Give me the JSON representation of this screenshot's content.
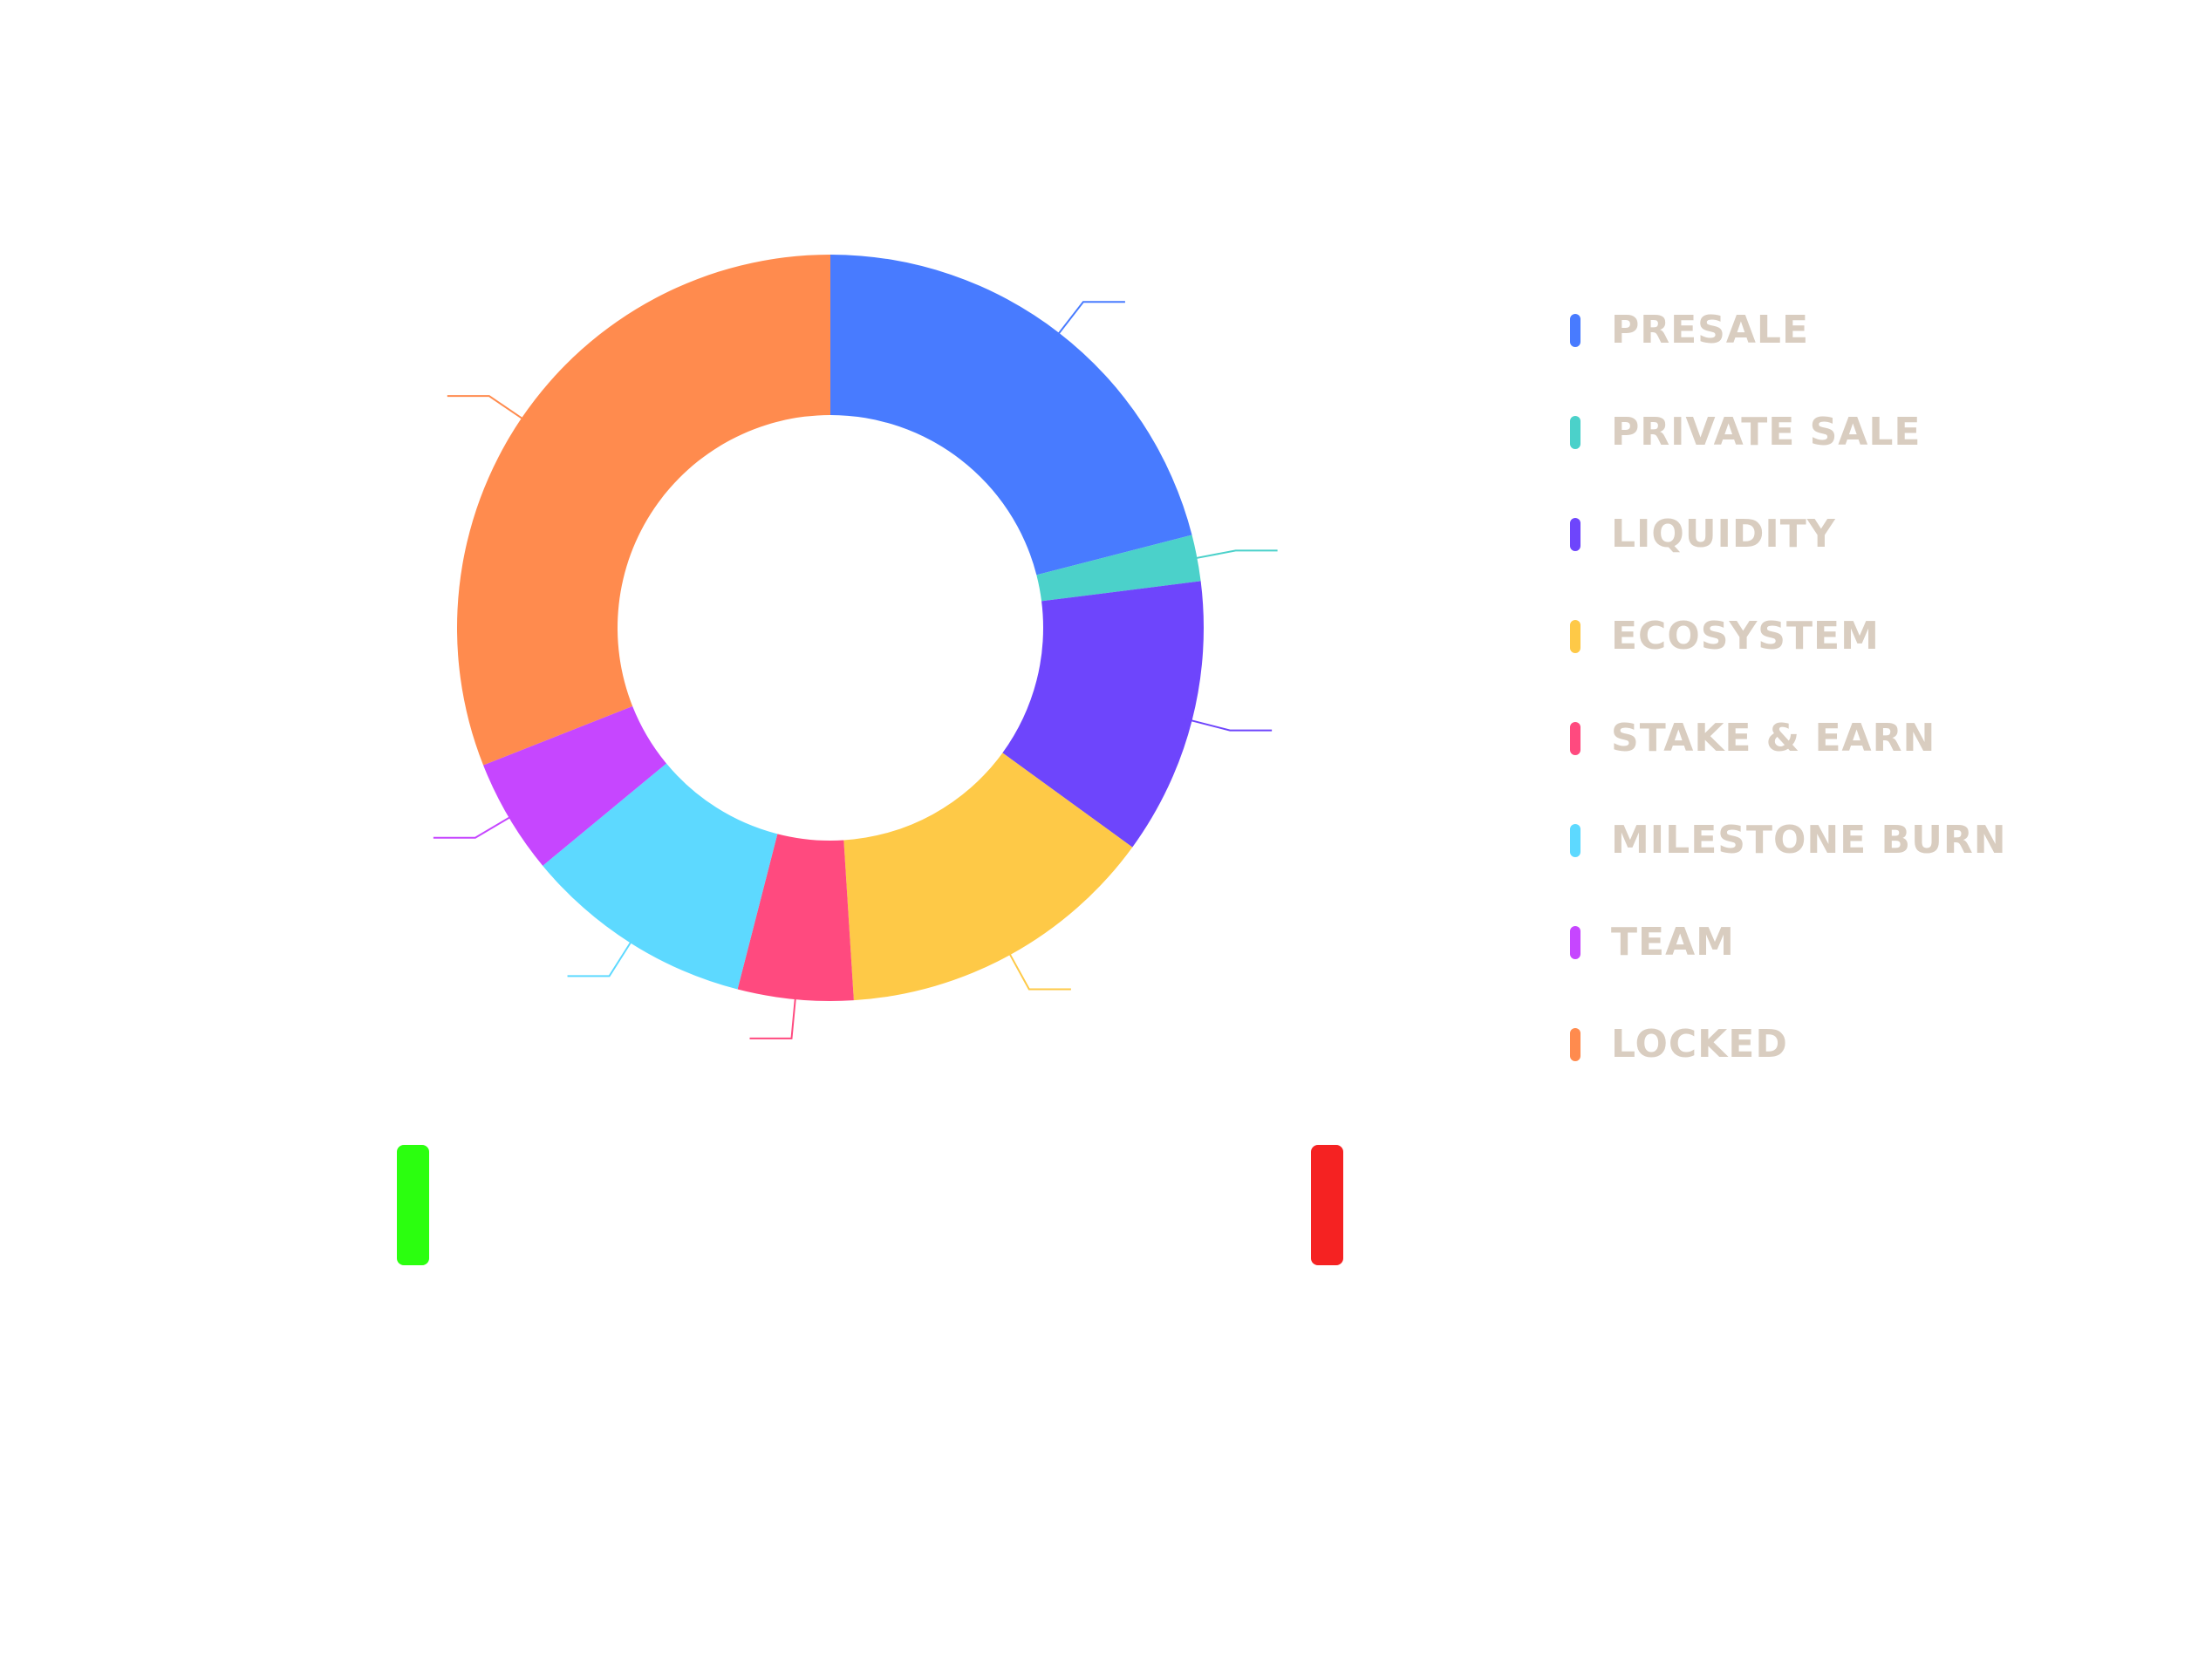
{
  "chart_data": {
    "type": "pie",
    "donut": true,
    "title": "",
    "legend_position": "right",
    "slices": [
      {
        "label": "PRESALE",
        "value": 21,
        "color": "#487bff"
      },
      {
        "label": "PRIVATE SALE",
        "value": 2,
        "color": "#4bd1ca"
      },
      {
        "label": "LIQUIDITY",
        "value": 12,
        "color": "#6e45fc"
      },
      {
        "label": "ECOSYSTEM",
        "value": 14,
        "color": "#fec947"
      },
      {
        "label": "STAKE & EARN",
        "value": 5,
        "color": "#ff4a7f"
      },
      {
        "label": "MILESTONE BURN",
        "value": 10,
        "color": "#5dd9ff"
      },
      {
        "label": "TEAM",
        "value": 5,
        "color": "#c646ff"
      },
      {
        "label": "LOCKED",
        "value": 31,
        "color": "#ff8b4e"
      }
    ]
  },
  "indicators": [
    {
      "name": "green",
      "color": "#2bff0f"
    },
    {
      "name": "red",
      "color": "#f52222"
    }
  ]
}
